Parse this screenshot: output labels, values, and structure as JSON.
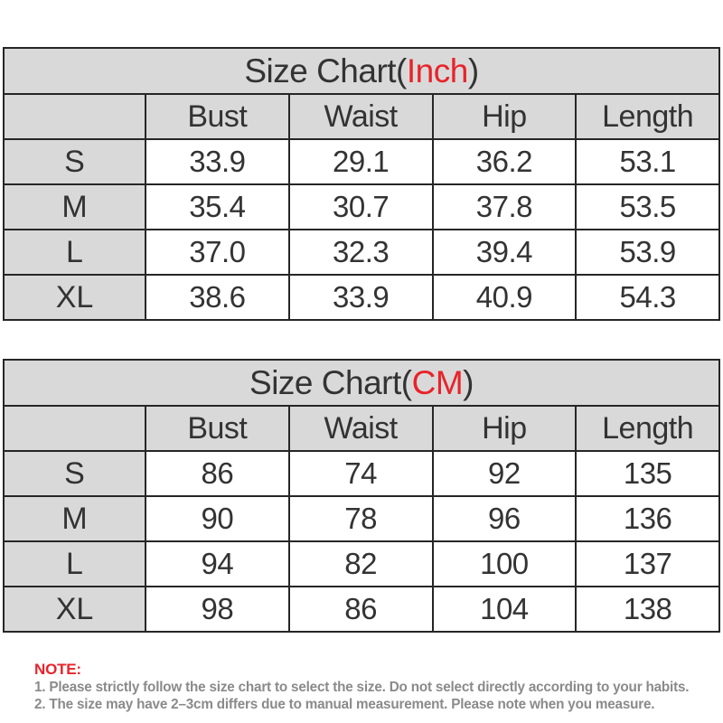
{
  "colors": {
    "accent_red": "#e8232a",
    "cell_gray": "#d9d9d9",
    "border": "#262626",
    "table_text": "#333333",
    "note_text": "#8a8a8a"
  },
  "tables": [
    {
      "title_prefix": "Size Chart(",
      "title_unit": "Inch",
      "title_suffix": ")",
      "columns": [
        "",
        "Bust",
        "Waist",
        "Hip",
        "Length"
      ],
      "rows": [
        {
          "size": "S",
          "values": [
            "33.9",
            "29.1",
            "36.2",
            "53.1"
          ]
        },
        {
          "size": "M",
          "values": [
            "35.4",
            "30.7",
            "37.8",
            "53.5"
          ]
        },
        {
          "size": "L",
          "values": [
            "37.0",
            "32.3",
            "39.4",
            "53.9"
          ]
        },
        {
          "size": "XL",
          "values": [
            "38.6",
            "33.9",
            "40.9",
            "54.3"
          ]
        }
      ]
    },
    {
      "title_prefix": "Size Chart(",
      "title_unit": "CM",
      "title_suffix": ")",
      "columns": [
        "",
        "Bust",
        "Waist",
        "Hip",
        "Length"
      ],
      "rows": [
        {
          "size": "S",
          "values": [
            "86",
            "74",
            "92",
            "135"
          ]
        },
        {
          "size": "M",
          "values": [
            "90",
            "78",
            "96",
            "136"
          ]
        },
        {
          "size": "L",
          "values": [
            "94",
            "82",
            "100",
            "137"
          ]
        },
        {
          "size": "XL",
          "values": [
            "98",
            "86",
            "104",
            "138"
          ]
        }
      ]
    }
  ],
  "note": {
    "label": "NOTE:",
    "lines": [
      "1. Please strictly follow the size chart  to select the size. Do not select directly according to your habits.",
      "2. The size may have 2–3cm differs due to manual measurement. Please note when you measure."
    ]
  }
}
